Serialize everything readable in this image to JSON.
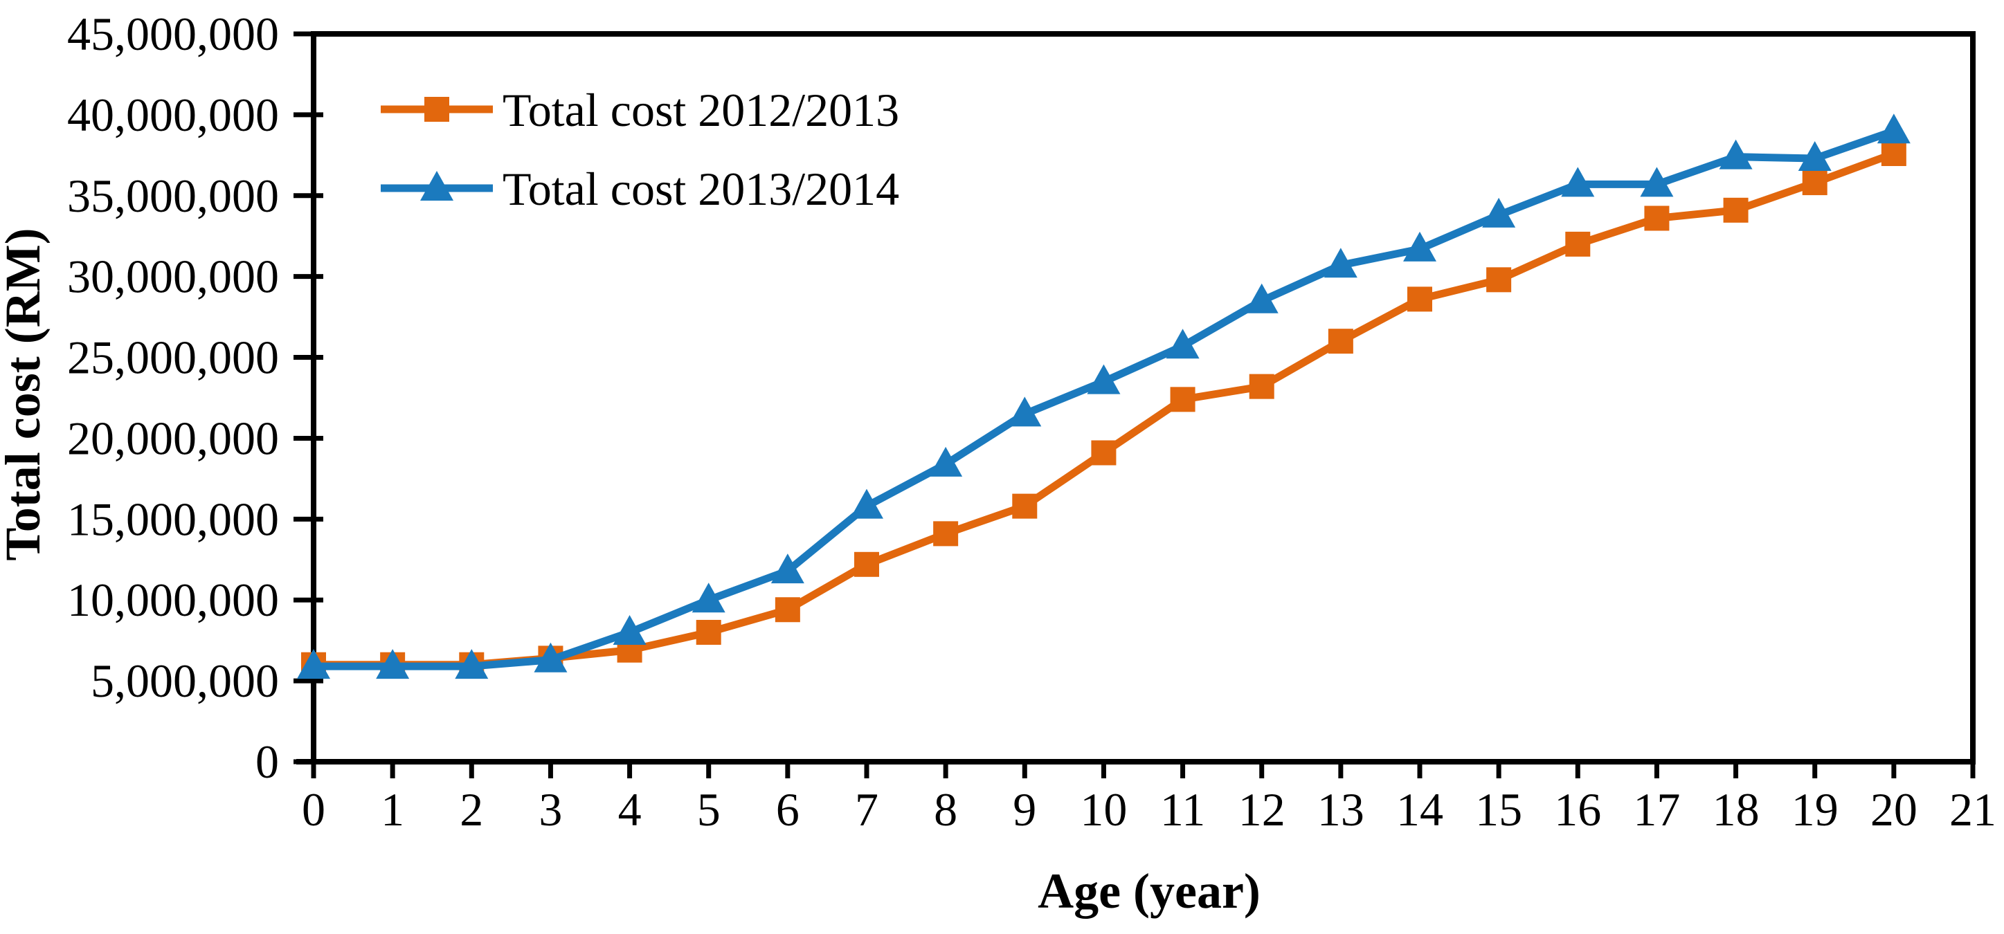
{
  "chart_data": {
    "type": "line",
    "title": "",
    "xlabel": "Age (year)",
    "ylabel": "Total cost (RM)",
    "xlim": [
      0,
      21
    ],
    "ylim": [
      0,
      45000000
    ],
    "grid": false,
    "legend_position": "top-left-inside",
    "axis_color": "#000000",
    "x_tick_values": [
      0,
      1,
      2,
      3,
      4,
      5,
      6,
      7,
      8,
      9,
      10,
      11,
      12,
      13,
      14,
      15,
      16,
      17,
      18,
      19,
      20,
      21
    ],
    "x_tick_labels": [
      "0",
      "1",
      "2",
      "3",
      "4",
      "5",
      "6",
      "7",
      "8",
      "9",
      "10",
      "11",
      "12",
      "13",
      "14",
      "15",
      "16",
      "17",
      "18",
      "19",
      "20",
      "21"
    ],
    "y_tick_values": [
      0,
      5000000,
      10000000,
      15000000,
      20000000,
      25000000,
      30000000,
      35000000,
      40000000,
      45000000
    ],
    "y_tick_labels": [
      "0",
      "5,000,000",
      "10,000,000",
      "15,000,000",
      "20,000,000",
      "25,000,000",
      "30,000,000",
      "35,000,000",
      "40,000,000",
      "45,000,000"
    ],
    "x": [
      0,
      1,
      2,
      3,
      4,
      5,
      6,
      7,
      8,
      9,
      10,
      11,
      12,
      13,
      14,
      15,
      16,
      17,
      18,
      19,
      20
    ],
    "series": [
      {
        "name": "Total cost 2012/2013",
        "color": "#E2670D",
        "marker": "square",
        "values": [
          6000000,
          6000000,
          6000000,
          6400000,
          6900000,
          8000000,
          9400000,
          12200000,
          14100000,
          15800000,
          19100000,
          22400000,
          23200000,
          26000000,
          28600000,
          29800000,
          32000000,
          33600000,
          34100000,
          35800000,
          37600000
        ]
      },
      {
        "name": "Total cost 2013/2014",
        "color": "#1B7ABE",
        "marker": "triangle",
        "values": [
          5900000,
          5900000,
          5900000,
          6300000,
          8000000,
          10000000,
          11800000,
          15800000,
          18400000,
          21500000,
          23500000,
          25700000,
          28500000,
          30700000,
          31700000,
          33800000,
          35700000,
          35700000,
          37400000,
          37300000,
          39000000
        ]
      }
    ]
  }
}
